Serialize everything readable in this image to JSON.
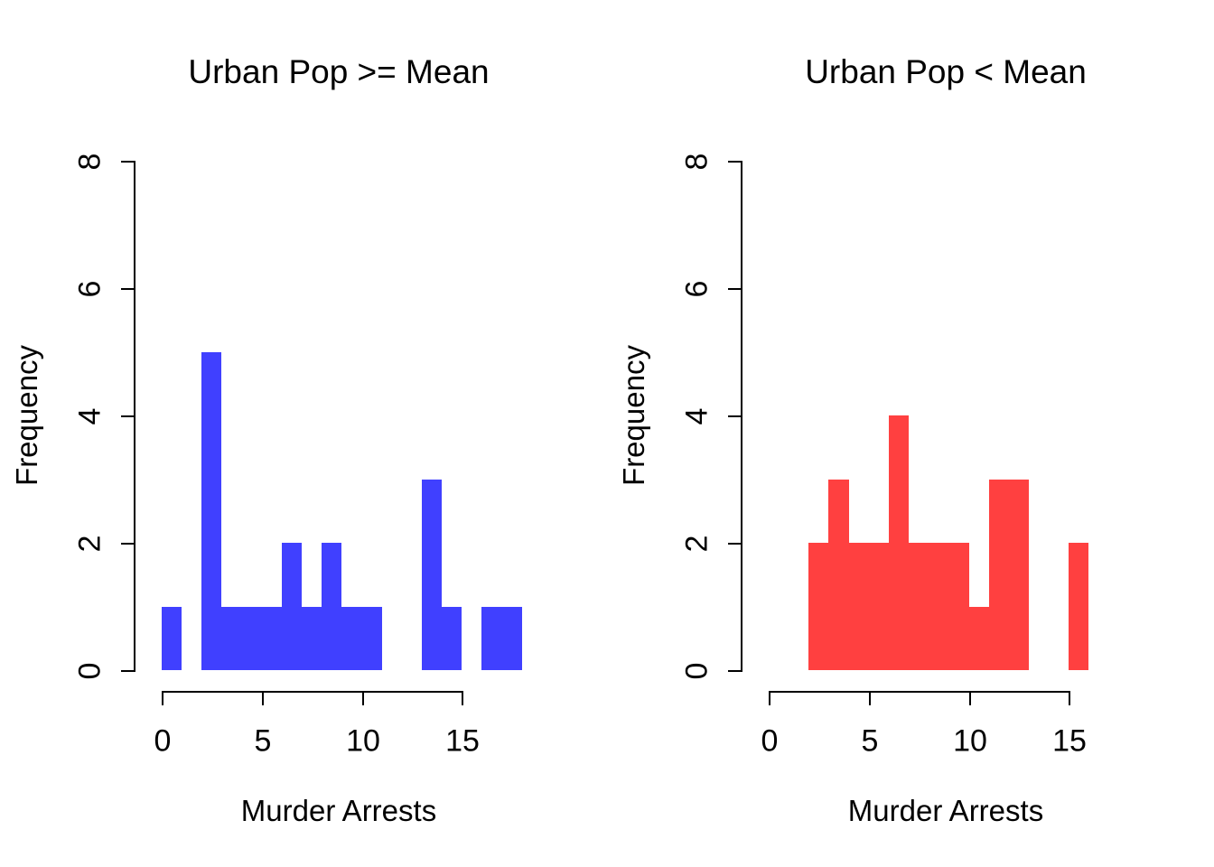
{
  "figure": {
    "background": "#FFFFFF",
    "text_color": "#000000"
  },
  "chart_data": [
    {
      "type": "bar",
      "subtype": "histogram",
      "title": "Urban Pop >= Mean",
      "xlabel": "Murder Arrests",
      "ylabel": "Frequency",
      "bar_color": "#4040FF",
      "axis_color": "#000000",
      "grid": false,
      "legend": false,
      "xlim": [
        0,
        18
      ],
      "ylim": [
        0,
        8
      ],
      "xticks": [
        0,
        5,
        10,
        15
      ],
      "yticks": [
        0,
        2,
        4,
        6,
        8
      ],
      "breaks": [
        0,
        1,
        2,
        3,
        4,
        5,
        6,
        7,
        8,
        9,
        10,
        11,
        12,
        13,
        14,
        15,
        16,
        17,
        18
      ],
      "counts": [
        1,
        0,
        5,
        1,
        1,
        1,
        2,
        1,
        2,
        1,
        1,
        0,
        0,
        3,
        1,
        0,
        1,
        1
      ]
    },
    {
      "type": "bar",
      "subtype": "histogram",
      "title": "Urban Pop < Mean",
      "xlabel": "Murder Arrests",
      "ylabel": "Frequency",
      "bar_color": "#FF4040",
      "axis_color": "#000000",
      "grid": false,
      "legend": false,
      "xlim": [
        0,
        16
      ],
      "ylim": [
        0,
        8
      ],
      "xticks": [
        0,
        5,
        10,
        15
      ],
      "yticks": [
        0,
        2,
        4,
        6,
        8
      ],
      "breaks": [
        2,
        3,
        4,
        5,
        6,
        7,
        8,
        9,
        10,
        11,
        12,
        13,
        14,
        15,
        16
      ],
      "counts": [
        2,
        3,
        2,
        2,
        4,
        2,
        2,
        2,
        1,
        3,
        3,
        0,
        0,
        2
      ]
    }
  ]
}
